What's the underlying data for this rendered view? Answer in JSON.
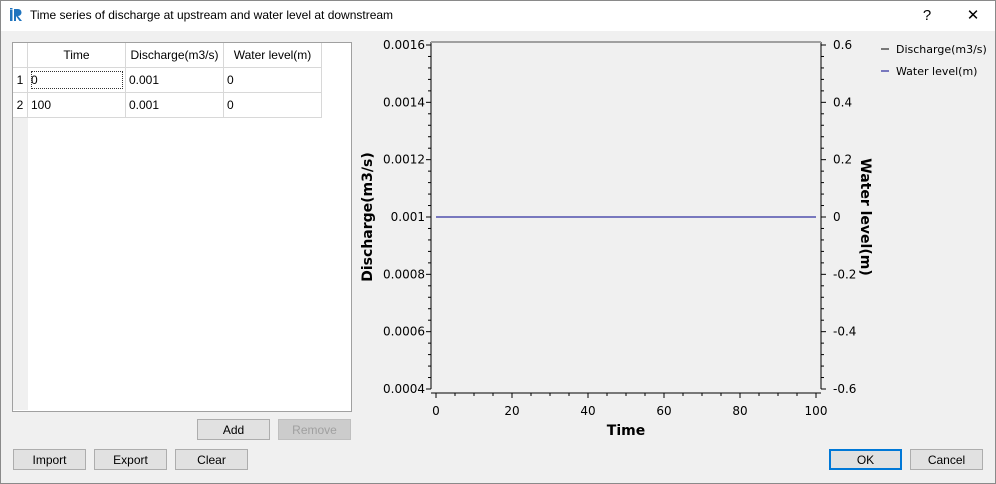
{
  "window": {
    "title": "Time series of discharge at upstream and water level at downstream",
    "help_label": "?",
    "close_label": "✕"
  },
  "table": {
    "columns": [
      "Time",
      "Discharge(m3/s)",
      "Water level(m)"
    ],
    "rows": [
      {
        "num": "1",
        "cells": [
          "0",
          "0.001",
          "0"
        ]
      },
      {
        "num": "2",
        "cells": [
          "100",
          "0.001",
          "0"
        ]
      }
    ]
  },
  "buttons": {
    "add": "Add",
    "remove": "Remove",
    "import": "Import",
    "export": "Export",
    "clear": "Clear",
    "ok": "OK",
    "cancel": "Cancel"
  },
  "chart_data": {
    "type": "line",
    "xlabel": "Time",
    "ylabel": "Discharge(m3/s)",
    "y2label": "Water level(m)",
    "xlim": [
      0,
      100
    ],
    "ylim": [
      0.0004,
      0.0016
    ],
    "y2lim": [
      -0.6,
      0.6
    ],
    "x_ticks": [
      "0",
      "20",
      "40",
      "60",
      "80",
      "100"
    ],
    "y_ticks": [
      "0.0004",
      "0.0006",
      "0.0008",
      "0.001",
      "0.0012",
      "0.0014",
      "0.0016"
    ],
    "y2_ticks": [
      "-0.6",
      "-0.4",
      "-0.2",
      "0",
      "0.2",
      "0.4",
      "0.6"
    ],
    "legend_position": "top-right",
    "series": [
      {
        "name": "Discharge(m3/s)",
        "axis": "left",
        "color": "#000000",
        "x": [
          0,
          100
        ],
        "y": [
          0.001,
          0.001
        ]
      },
      {
        "name": "Water level(m)",
        "axis": "right",
        "color": "#00008b",
        "x": [
          0,
          100
        ],
        "y": [
          0,
          0
        ]
      }
    ]
  }
}
